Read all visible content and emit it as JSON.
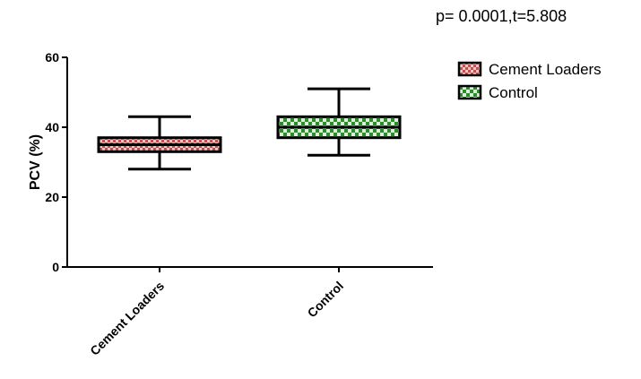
{
  "chart_data": {
    "type": "box",
    "annotation": "p= 0.0001,t=5.808",
    "ylabel": "PCV (%)",
    "xlabel": "",
    "ylim": [
      0,
      60
    ],
    "yticks": [
      0,
      20,
      40,
      60
    ],
    "ytick_labels": [
      "0",
      "20",
      "40",
      "60"
    ],
    "categories": [
      "Cement Loaders",
      "Control"
    ],
    "series": [
      {
        "name": "Cement Loaders",
        "min": 28,
        "q1": 33,
        "median": 35,
        "q3": 37,
        "max": 43,
        "color": "#e8a0a0",
        "pattern_color": "#c0504d"
      },
      {
        "name": "Control",
        "min": 32,
        "q1": 37,
        "median": 40,
        "q3": 43,
        "max": 51,
        "color": "#a8d8a8",
        "pattern_color": "#2e8b2e"
      }
    ],
    "legend_position": "top-right",
    "grid": false
  }
}
